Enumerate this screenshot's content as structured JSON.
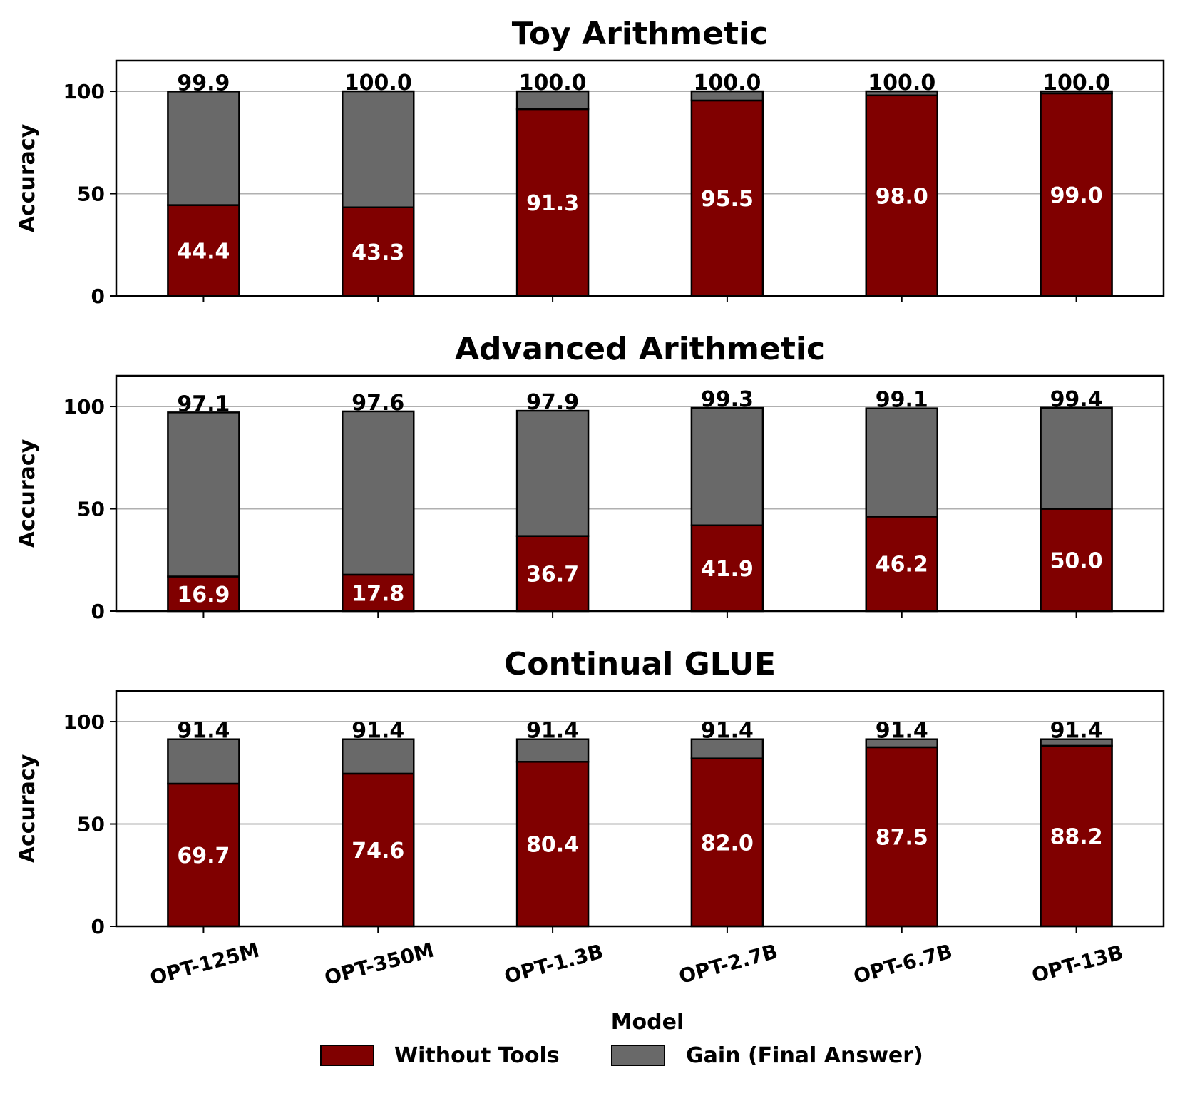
{
  "colors": {
    "without_tools": "#800000",
    "gain": "#696969",
    "grid": "#b0b0b0"
  },
  "legend": {
    "without_tools_label": "Without Tools",
    "gain_label": "Gain (Final Answer)"
  },
  "x_axis_label": "Model",
  "chart_data": [
    {
      "type": "bar",
      "stacked": true,
      "title": "Toy Arithmetic",
      "ylabel": "Accuracy",
      "ylim": [
        0,
        115
      ],
      "yticks": [
        0,
        50,
        100
      ],
      "grid": true,
      "categories": [
        "OPT-125M",
        "OPT-350M",
        "OPT-1.3B",
        "OPT-2.7B",
        "OPT-6.7B",
        "OPT-13B"
      ],
      "series": [
        {
          "name": "Without Tools",
          "values": [
            44.4,
            43.3,
            91.3,
            95.5,
            98.0,
            99.0
          ]
        },
        {
          "name": "Gain (Final Answer)",
          "values": [
            55.5,
            56.7,
            8.7,
            4.5,
            2.0,
            1.0
          ]
        }
      ],
      "bottom_labels": [
        "44.4",
        "43.3",
        "91.3",
        "95.5",
        "98.0",
        "99.0"
      ],
      "total_labels": [
        "99.9",
        "100.0",
        "100.0",
        "100.0",
        "100.0",
        "100.0"
      ],
      "show_xticklabels": false
    },
    {
      "type": "bar",
      "stacked": true,
      "title": "Advanced Arithmetic",
      "ylabel": "Accuracy",
      "ylim": [
        0,
        115
      ],
      "yticks": [
        0,
        50,
        100
      ],
      "grid": true,
      "categories": [
        "OPT-125M",
        "OPT-350M",
        "OPT-1.3B",
        "OPT-2.7B",
        "OPT-6.7B",
        "OPT-13B"
      ],
      "series": [
        {
          "name": "Without Tools",
          "values": [
            16.9,
            17.8,
            36.7,
            41.9,
            46.2,
            50.0
          ]
        },
        {
          "name": "Gain (Final Answer)",
          "values": [
            80.2,
            79.8,
            61.2,
            57.4,
            52.9,
            49.4
          ]
        }
      ],
      "bottom_labels": [
        "16.9",
        "17.8",
        "36.7",
        "41.9",
        "46.2",
        "50.0"
      ],
      "total_labels": [
        "97.1",
        "97.6",
        "97.9",
        "99.3",
        "99.1",
        "99.4"
      ],
      "show_xticklabels": false
    },
    {
      "type": "bar",
      "stacked": true,
      "title": "Continual GLUE",
      "ylabel": "Accuracy",
      "ylim": [
        0,
        115
      ],
      "yticks": [
        0,
        50,
        100
      ],
      "grid": true,
      "categories": [
        "OPT-125M",
        "OPT-350M",
        "OPT-1.3B",
        "OPT-2.7B",
        "OPT-6.7B",
        "OPT-13B"
      ],
      "series": [
        {
          "name": "Without Tools",
          "values": [
            69.7,
            74.6,
            80.4,
            82.0,
            87.5,
            88.2
          ]
        },
        {
          "name": "Gain (Final Answer)",
          "values": [
            21.7,
            16.8,
            11.0,
            9.4,
            3.9,
            3.2
          ]
        }
      ],
      "bottom_labels": [
        "69.7",
        "74.6",
        "80.4",
        "82.0",
        "87.5",
        "88.2"
      ],
      "total_labels": [
        "91.4",
        "91.4",
        "91.4",
        "91.4",
        "91.4",
        "91.4"
      ],
      "show_xticklabels": true
    }
  ]
}
